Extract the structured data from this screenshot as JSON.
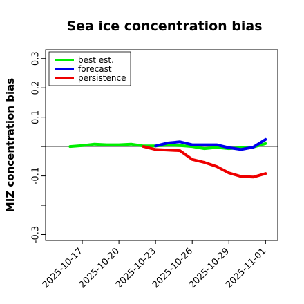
{
  "chart_data": {
    "type": "line",
    "title": "Sea ice concentration bias",
    "xlabel": "",
    "ylabel": "MIZ concentration bias",
    "ylim": [
      -0.32,
      0.33
    ],
    "yticks": [
      -0.3,
      -0.1,
      0.1,
      0.2,
      0.3
    ],
    "yticks_unlabeled": [
      -0.2,
      0.0
    ],
    "xlim": [
      "2025-10-14",
      "2025-11-02"
    ],
    "x_tick_labels": [
      "2025-10-17",
      "2025-10-20",
      "2025-10-23",
      "2025-10-26",
      "2025-10-29",
      "2025-11-01"
    ],
    "highlighted_tick": "2025-10-23",
    "highlight_color": "#228B22",
    "reference_line": 0.0,
    "grid": false,
    "legend_position": "top-left",
    "series": [
      {
        "name": "best est.",
        "color": "#00ee00",
        "points": [
          [
            "2025-10-16",
            0.0
          ],
          [
            "2025-10-17",
            0.003
          ],
          [
            "2025-10-18",
            0.008
          ],
          [
            "2025-10-19",
            0.006
          ],
          [
            "2025-10-20",
            0.006
          ],
          [
            "2025-10-21",
            0.008
          ],
          [
            "2025-10-22",
            0.002
          ],
          [
            "2025-10-23",
            0.002
          ],
          [
            "2025-10-24",
            0.005
          ],
          [
            "2025-10-25",
            0.003
          ],
          [
            "2025-10-26",
            0.0
          ],
          [
            "2025-10-27",
            -0.007
          ],
          [
            "2025-10-28",
            -0.003
          ],
          [
            "2025-10-29",
            -0.007
          ],
          [
            "2025-10-30",
            -0.004
          ],
          [
            "2025-10-31",
            -0.002
          ],
          [
            "2025-11-01",
            0.01
          ]
        ]
      },
      {
        "name": "forecast",
        "color": "#0000ee",
        "points": [
          [
            "2025-10-23",
            0.002
          ],
          [
            "2025-10-24",
            0.012
          ],
          [
            "2025-10-25",
            0.016
          ],
          [
            "2025-10-26",
            0.006
          ],
          [
            "2025-10-27",
            0.006
          ],
          [
            "2025-10-28",
            0.006
          ],
          [
            "2025-10-29",
            -0.004
          ],
          [
            "2025-10-30",
            -0.01
          ],
          [
            "2025-10-31",
            -0.002
          ],
          [
            "2025-11-01",
            0.024
          ]
        ]
      },
      {
        "name": "persistence",
        "color": "#ee0000",
        "points": [
          [
            "2025-10-22",
            0.0
          ],
          [
            "2025-10-23",
            -0.01
          ],
          [
            "2025-10-24",
            -0.012
          ],
          [
            "2025-10-25",
            -0.014
          ],
          [
            "2025-10-26",
            -0.044
          ],
          [
            "2025-10-27",
            -0.054
          ],
          [
            "2025-10-28",
            -0.068
          ],
          [
            "2025-10-29",
            -0.09
          ],
          [
            "2025-10-30",
            -0.102
          ],
          [
            "2025-10-31",
            -0.104
          ],
          [
            "2025-11-01",
            -0.092
          ]
        ]
      }
    ]
  }
}
